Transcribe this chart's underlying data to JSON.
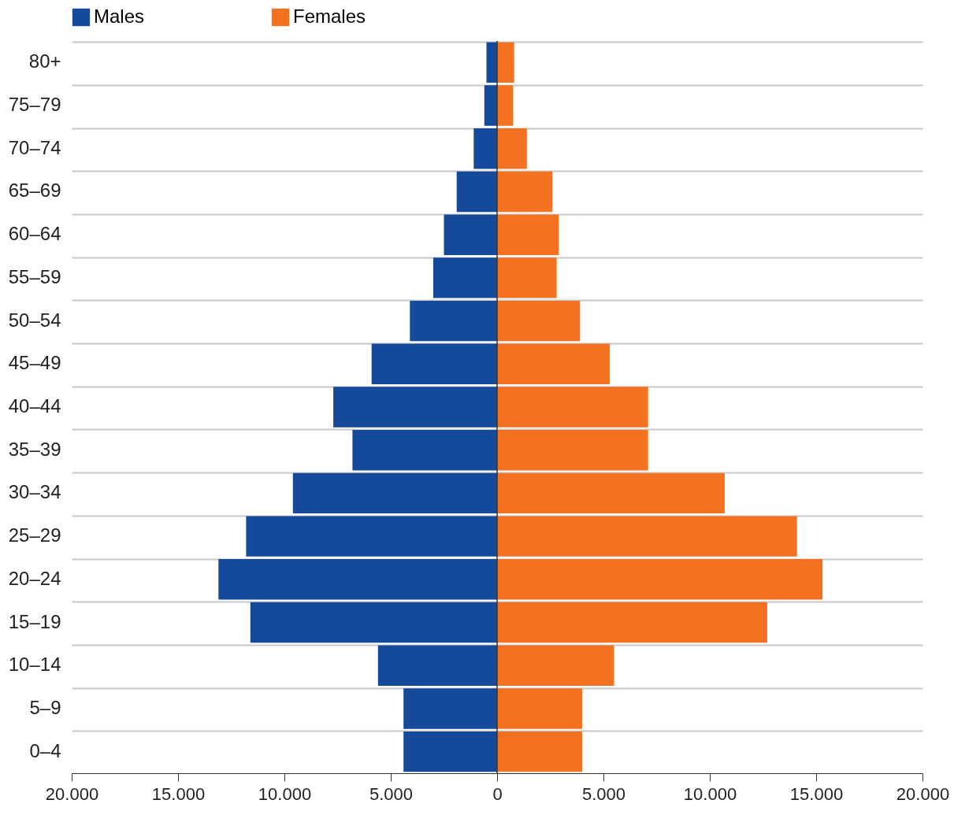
{
  "chart_data": {
    "type": "bar",
    "orientation": "horizontal",
    "categories": [
      "80+",
      "75–79",
      "70–74",
      "65–69",
      "60–64",
      "55–59",
      "50–54",
      "45–49",
      "40–44",
      "35–39",
      "30–34",
      "25–29",
      "20–24",
      "15–19",
      "10–14",
      "5–9",
      "0–4"
    ],
    "series": [
      {
        "name": "Males",
        "color": "#154a9b",
        "values": [
          -500,
          -600,
          -1100,
          -1900,
          -2500,
          -3000,
          -4100,
          -5900,
          -7700,
          -6800,
          -9600,
          -11800,
          -13100,
          -11600,
          -5600,
          -4400,
          -4400
        ]
      },
      {
        "name": "Females",
        "color": "#f37221",
        "values": [
          800,
          750,
          1400,
          2600,
          2900,
          2800,
          3900,
          5300,
          7100,
          7100,
          10700,
          14100,
          15300,
          12700,
          5500,
          4000,
          4000
        ]
      }
    ],
    "xlim": [
      -20000,
      20000
    ],
    "xticks": [
      {
        "value": -20000,
        "label": "20.000"
      },
      {
        "value": -15000,
        "label": "15.000"
      },
      {
        "value": -10000,
        "label": "10.000"
      },
      {
        "value": -5000,
        "label": "5.000"
      },
      0,
      {
        "value": 5000,
        "label": "5.000"
      },
      {
        "value": 10000,
        "label": "10.000"
      },
      {
        "value": 15000,
        "label": "15.000"
      },
      {
        "value": 20000,
        "label": "20.000"
      }
    ],
    "ref_lines": [
      {
        "axis": "x",
        "value": 0,
        "color": "#333333"
      }
    ],
    "grid": "y",
    "legend": "top",
    "stacked": true
  }
}
